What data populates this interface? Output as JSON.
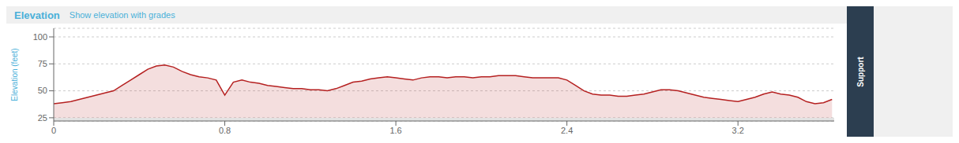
{
  "chart_data": {
    "type": "area",
    "title": "Elevation",
    "subtitle": "Show elevation with grades",
    "y_label": "Elevation (feet)",
    "annotations": [
      "Support"
    ],
    "x": [
      0.0,
      0.04,
      0.08,
      0.12,
      0.16,
      0.2,
      0.24,
      0.28,
      0.32,
      0.36,
      0.4,
      0.44,
      0.48,
      0.52,
      0.56,
      0.6,
      0.64,
      0.68,
      0.72,
      0.76,
      0.8,
      0.84,
      0.88,
      0.92,
      0.96,
      1.0,
      1.04,
      1.08,
      1.12,
      1.16,
      1.2,
      1.24,
      1.28,
      1.32,
      1.36,
      1.4,
      1.44,
      1.48,
      1.52,
      1.56,
      1.6,
      1.64,
      1.68,
      1.72,
      1.76,
      1.8,
      1.84,
      1.88,
      1.92,
      1.96,
      2.0,
      2.04,
      2.08,
      2.12,
      2.16,
      2.2,
      2.24,
      2.28,
      2.32,
      2.36,
      2.4,
      2.44,
      2.48,
      2.52,
      2.56,
      2.6,
      2.64,
      2.68,
      2.72,
      2.76,
      2.8,
      2.84,
      2.88,
      2.92,
      2.96,
      3.0,
      3.04,
      3.08,
      3.12,
      3.16,
      3.2,
      3.24,
      3.28,
      3.32,
      3.36,
      3.4,
      3.44,
      3.48,
      3.52,
      3.56,
      3.6,
      3.64
    ],
    "series": [
      {
        "color": "#b52020",
        "values": [
          38,
          39,
          40,
          42,
          44,
          46,
          48,
          50,
          55,
          60,
          65,
          70,
          73,
          74,
          72,
          68,
          65,
          63,
          62,
          60,
          46,
          58,
          60,
          58,
          57,
          55,
          54,
          53,
          52,
          52,
          51,
          51,
          50,
          52,
          55,
          58,
          59,
          61,
          62,
          63,
          62,
          61,
          60,
          62,
          63,
          63,
          62,
          63,
          63,
          62,
          63,
          63,
          64,
          64,
          64,
          63,
          62,
          62,
          62,
          62,
          60,
          55,
          50,
          47,
          46,
          46,
          45,
          45,
          46,
          47,
          49,
          51,
          51,
          50,
          48,
          46,
          44,
          43,
          42,
          41,
          40,
          42,
          44,
          47,
          49,
          47,
          46,
          44,
          40,
          38,
          39,
          42
        ]
      }
    ],
    "fill_bottom": 25,
    "xlim": [
      0,
      3.65
    ],
    "xticks": [
      0,
      0.8,
      1.6,
      2.4,
      3.2
    ],
    "ylim": [
      22,
      108
    ],
    "yticks": [
      25,
      50,
      75,
      100
    ],
    "grid": true
  }
}
